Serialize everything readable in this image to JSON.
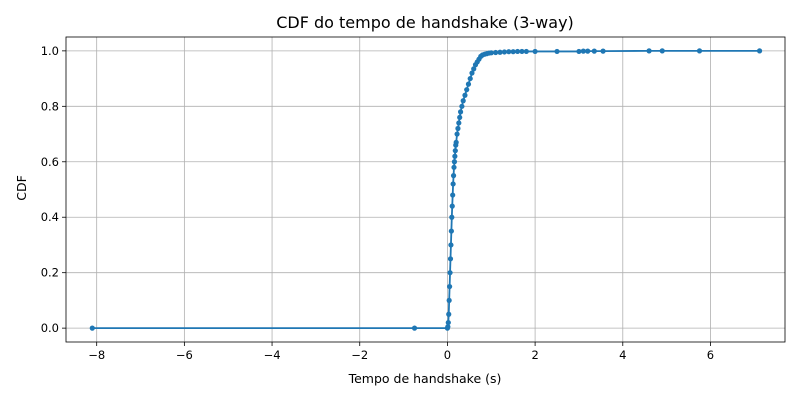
{
  "chart_data": {
    "type": "line",
    "title": "CDF do tempo de handshake (3-way)",
    "xlabel": "Tempo de handshake (s)",
    "ylabel": "CDF",
    "xlim": [
      -8.7,
      7.7
    ],
    "ylim": [
      -0.05,
      1.05
    ],
    "xticks": [
      -8,
      -6,
      -4,
      -2,
      0,
      2,
      4,
      6
    ],
    "yticks": [
      0.0,
      0.2,
      0.4,
      0.6,
      0.8,
      1.0
    ],
    "xtick_labels": [
      "−8",
      "−6",
      "−4",
      "−2",
      "0",
      "2",
      "4",
      "6"
    ],
    "ytick_labels": [
      "0.0",
      "0.2",
      "0.4",
      "0.6",
      "0.8",
      "1.0"
    ],
    "grid": true,
    "marker": "circle",
    "series": [
      {
        "color": "#1f77b4",
        "x": [
          -8.1,
          -0.75,
          0.0,
          0.01,
          0.02,
          0.03,
          0.04,
          0.05,
          0.06,
          0.07,
          0.08,
          0.09,
          0.1,
          0.11,
          0.12,
          0.13,
          0.14,
          0.15,
          0.16,
          0.17,
          0.18,
          0.19,
          0.2,
          0.22,
          0.24,
          0.26,
          0.28,
          0.3,
          0.33,
          0.36,
          0.4,
          0.44,
          0.48,
          0.52,
          0.56,
          0.6,
          0.64,
          0.68,
          0.72,
          0.76,
          0.8,
          0.85,
          0.9,
          0.95,
          1.0,
          1.1,
          1.2,
          1.3,
          1.4,
          1.5,
          1.6,
          1.7,
          1.8,
          2.0,
          2.5,
          3.0,
          3.1,
          3.2,
          3.35,
          3.55,
          4.6,
          4.9,
          5.75,
          7.12
        ],
        "y": [
          0.0,
          0.0,
          0.0,
          0.005,
          0.02,
          0.05,
          0.1,
          0.15,
          0.2,
          0.25,
          0.3,
          0.35,
          0.4,
          0.44,
          0.48,
          0.52,
          0.55,
          0.58,
          0.6,
          0.62,
          0.64,
          0.66,
          0.67,
          0.7,
          0.72,
          0.74,
          0.76,
          0.78,
          0.8,
          0.82,
          0.84,
          0.86,
          0.88,
          0.9,
          0.92,
          0.935,
          0.95,
          0.96,
          0.97,
          0.98,
          0.985,
          0.988,
          0.99,
          0.992,
          0.993,
          0.994,
          0.995,
          0.996,
          0.997,
          0.997,
          0.998,
          0.998,
          0.998,
          0.998,
          0.998,
          0.998,
          0.999,
          0.999,
          0.999,
          0.999,
          1.0,
          1.0,
          1.0,
          1.0
        ]
      }
    ]
  }
}
